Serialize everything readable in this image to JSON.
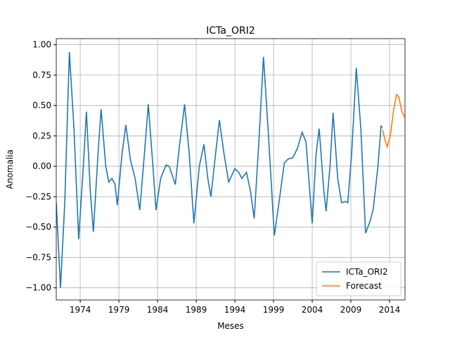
{
  "chart_data": {
    "type": "line",
    "title": "ICTa_ORI2",
    "x_label": "Meses",
    "y_label": "Anomalia",
    "xlim": [
      1970.9,
      2016
    ],
    "ylim": [
      -1.1,
      1.05
    ],
    "xticks": [
      1974,
      1979,
      1984,
      1989,
      1994,
      1999,
      2004,
      2009,
      2014
    ],
    "yticks": [
      {
        "value": -1,
        "label": "−1.00"
      },
      {
        "value": -0.75,
        "label": "−0.75"
      },
      {
        "value": -0.5,
        "label": "−0.50"
      },
      {
        "value": -0.25,
        "label": "−0.25"
      },
      {
        "value": 0,
        "label": "0.00"
      },
      {
        "value": 0.25,
        "label": "0.25"
      },
      {
        "value": 0.5,
        "label": "0.50"
      },
      {
        "value": 0.75,
        "label": "0.75"
      },
      {
        "value": 1,
        "label": "1.00"
      }
    ],
    "grid": true,
    "legend": "lower right",
    "series": [
      {
        "name": "ICTa_ORI2",
        "color": "#1f77b4",
        "x": [
          1970.9,
          1971.45,
          1972,
          1972.6,
          1973.2,
          1973.8,
          1974.4,
          1974.8,
          1975.3,
          1975.7,
          1976.3,
          1976.7,
          1977.3,
          1977.7,
          1978.1,
          1978.5,
          1978.8,
          1979.4,
          1979.9,
          1980.5,
          1981.1,
          1981.7,
          1982.3,
          1982.8,
          1983.4,
          1983.8,
          1984.4,
          1985.1,
          1985.5,
          1986.3,
          1986.8,
          1987.5,
          1988.1,
          1988.7,
          1989.4,
          1990,
          1990.5,
          1990.9,
          1991.5,
          1992,
          1992.6,
          1993.2,
          1994,
          1994.5,
          1994.9,
          1995.5,
          1996,
          1996.5,
          1997.1,
          1997.7,
          1998.3,
          1999.1,
          1999.7,
          2000.4,
          2000.9,
          2001.5,
          2002.1,
          2002.7,
          2003.2,
          2004,
          2004.5,
          2004.9,
          2005.5,
          2005.8,
          2006.3,
          2006.7,
          2007.3,
          2007.8,
          2008.3,
          2008.6,
          2009.1,
          2009.7,
          2010.3,
          2010.9,
          2011.5,
          2011.9,
          2012.5,
          2012.9,
          2013.1
        ],
        "values": [
          -0.3,
          -1.0,
          -0.3,
          0.94,
          0.3,
          -0.6,
          0.0,
          0.45,
          -0.2,
          -0.54,
          0.1,
          0.47,
          0.0,
          -0.13,
          -0.1,
          -0.15,
          -0.32,
          0.1,
          0.34,
          0.05,
          -0.1,
          -0.36,
          0.1,
          0.51,
          0.0,
          -0.36,
          -0.1,
          0.01,
          0.0,
          -0.15,
          0.15,
          0.51,
          0.1,
          -0.47,
          0.0,
          0.18,
          -0.1,
          -0.25,
          0.1,
          0.38,
          0.1,
          -0.13,
          -0.02,
          -0.05,
          -0.1,
          -0.05,
          -0.2,
          -0.43,
          0.2,
          0.9,
          0.3,
          -0.57,
          -0.3,
          0.03,
          0.06,
          0.07,
          0.15,
          0.28,
          0.2,
          -0.47,
          0.1,
          0.31,
          -0.2,
          -0.37,
          0.0,
          0.44,
          -0.1,
          -0.3,
          -0.29,
          -0.3,
          0.1,
          0.81,
          0.3,
          -0.55,
          -0.45,
          -0.35,
          0.0,
          0.33,
          0.32
        ]
      },
      {
        "name": "Forecast",
        "color": "#ff7f0e",
        "x": [
          2013.1,
          2013.4,
          2013.7,
          2014.1,
          2014.5,
          2014.9,
          2015.2,
          2015.6,
          2016
        ],
        "values": [
          0.3,
          0.22,
          0.16,
          0.25,
          0.45,
          0.59,
          0.57,
          0.45,
          0.4
        ]
      }
    ]
  }
}
